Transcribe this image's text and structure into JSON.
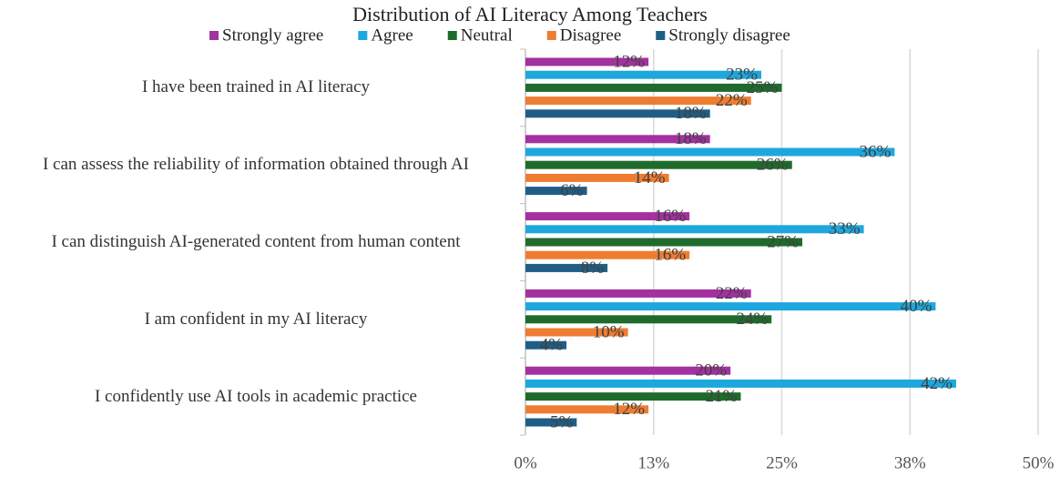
{
  "chart_data": {
    "type": "bar",
    "orientation": "horizontal",
    "title": "Distribution of AI Literacy Among Teachers",
    "categories": [
      "I have been trained in AI literacy",
      "I can assess the reliability of information obtained through AI",
      "I can distinguish AI-generated content from human content",
      "I am confident in my AI literacy",
      "I confidently use AI tools in academic practice"
    ],
    "series": [
      {
        "name": "Strongly agree",
        "color": "#a3319f",
        "values": [
          12,
          18,
          16,
          22,
          20
        ],
        "value_labels": [
          "12%",
          "18%",
          "16%",
          "22%",
          "20%"
        ]
      },
      {
        "name": "Agree",
        "color": "#1ea7dd",
        "values": [
          23,
          36,
          33,
          40,
          42
        ],
        "value_labels": [
          "23%",
          "36%",
          "33%",
          "40%",
          "42%"
        ]
      },
      {
        "name": "Neutral",
        "color": "#1f6b2b",
        "values": [
          25,
          26,
          27,
          24,
          21
        ],
        "value_labels": [
          "25%",
          "26%",
          "27%",
          "24%",
          "21%"
        ]
      },
      {
        "name": "Disagree",
        "color": "#ee7d31",
        "values": [
          22,
          14,
          16,
          10,
          12
        ],
        "value_labels": [
          "22%",
          "14%",
          "16%",
          "10%",
          "12%"
        ]
      },
      {
        "name": "Strongly disagree",
        "color": "#1f5e86",
        "values": [
          18,
          6,
          8,
          4,
          5
        ],
        "value_labels": [
          "18%",
          "6%",
          "8%",
          "4%",
          "5%"
        ]
      }
    ],
    "xlim": [
      0,
      50
    ],
    "xticks": [
      {
        "value": 0,
        "label": "0%"
      },
      {
        "value": 12.5,
        "label": "13%"
      },
      {
        "value": 25,
        "label": "25%"
      },
      {
        "value": 37.5,
        "label": "38%"
      },
      {
        "value": 50,
        "label": "50%"
      }
    ],
    "grid": true,
    "legend": "top"
  }
}
